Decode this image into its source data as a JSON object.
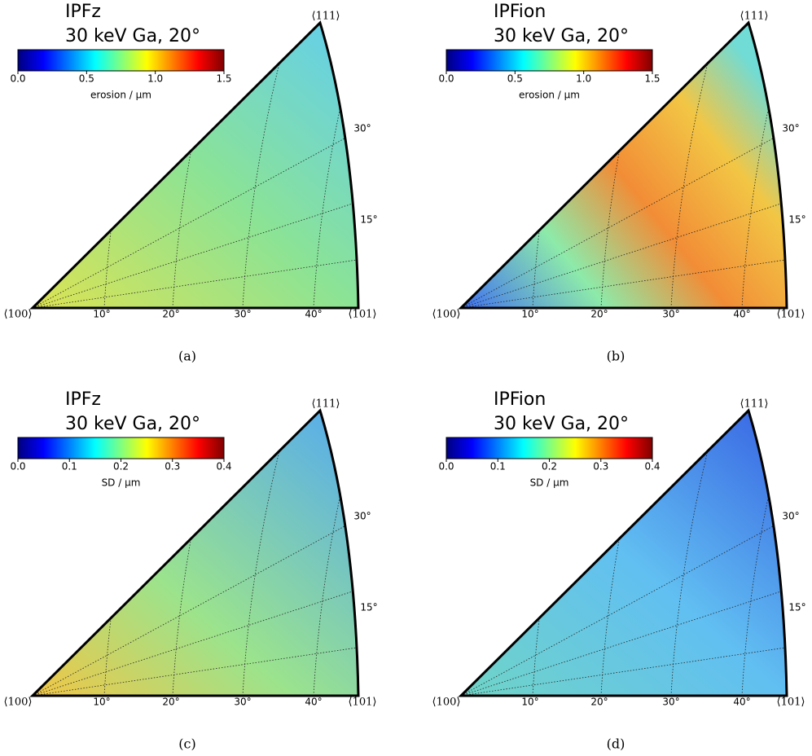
{
  "panels": [
    {
      "title": "IPFz",
      "subtitle": "30 keV Ga, 20°",
      "caption": "(a)",
      "colorbar": {
        "label": "erosion / µm",
        "lim": [
          0,
          1.5
        ],
        "ticks": [
          {
            "value": 0,
            "label": "0.0"
          },
          0.5,
          {
            "value": 1,
            "label": "1.0"
          },
          1.5
        ]
      }
    },
    {
      "title": "IPFion",
      "subtitle": "30 keV Ga, 20°",
      "caption": "(b)",
      "colorbar": {
        "label": "erosion / µm",
        "lim": [
          0,
          1.5
        ],
        "ticks": [
          {
            "value": 0,
            "label": "0.0"
          },
          0.5,
          {
            "value": 1,
            "label": "1.0"
          },
          1.5
        ]
      }
    },
    {
      "title": "IPFz",
      "subtitle": "30 keV Ga, 20°",
      "caption": "(c)",
      "colorbar": {
        "label": "SD / µm",
        "lim": [
          0,
          0.4
        ],
        "ticks": [
          {
            "value": 0,
            "label": "0.0"
          },
          0.1,
          0.2,
          0.3,
          0.4
        ]
      }
    },
    {
      "title": "IPFion",
      "subtitle": "30 keV Ga, 20°",
      "caption": "(d)",
      "colorbar": {
        "label": "SD / µm",
        "lim": [
          0,
          0.4
        ],
        "ticks": [
          {
            "value": 0,
            "label": "0.0"
          },
          0.1,
          0.2,
          0.3,
          0.4
        ]
      }
    }
  ],
  "poles": {
    "p100": "⟨100⟩",
    "p101": "⟨101⟩",
    "p111": "⟨111⟩"
  },
  "bottom_angles": [
    "10°",
    "20°",
    "30°",
    "40°"
  ],
  "side_angles": [
    "30°",
    "15°"
  ]
}
